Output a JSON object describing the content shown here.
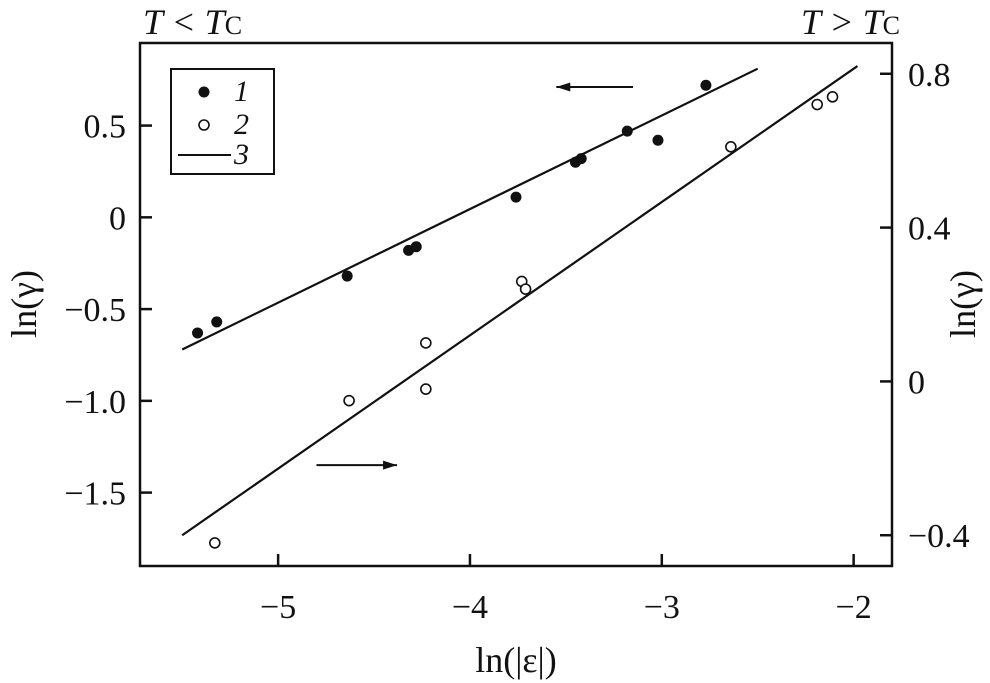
{
  "chart_data": {
    "type": "scatter",
    "xlabel": "ln(|ε|)",
    "ylabel_left": "ln(γ)",
    "ylabel_right": "ln(γ)",
    "corner_left": {
      "main": "T < T",
      "sub": "C"
    },
    "corner_right": {
      "main": "T > T",
      "sub": "C"
    },
    "xlim": [
      -5.72,
      -1.8
    ],
    "ylim_left": [
      -1.9,
      0.95
    ],
    "ylim_right": [
      -0.48,
      0.88
    ],
    "x_ticks": [
      {
        "value": -5,
        "label": "−5"
      },
      {
        "value": -4,
        "label": "−4"
      },
      {
        "value": -3,
        "label": "−3"
      },
      {
        "value": -2,
        "label": "−2"
      }
    ],
    "y_ticks_left": [
      {
        "value": 0.5,
        "label": "0.5"
      },
      {
        "value": 0,
        "label": "0"
      },
      {
        "value": -0.5,
        "label": "−0.5"
      },
      {
        "value": -1.0,
        "label": "−1.0"
      },
      {
        "value": -1.5,
        "label": "−1.5"
      }
    ],
    "y_ticks_right": [
      {
        "value": 0.8,
        "label": "0.8"
      },
      {
        "value": 0.4,
        "label": "0.4"
      },
      {
        "value": 0,
        "label": "0"
      },
      {
        "value": -0.4,
        "label": "−0.4"
      }
    ],
    "legend": {
      "position": "top-left",
      "entries": [
        "1",
        "2",
        "3"
      ]
    },
    "series": [
      {
        "name": "1",
        "marker": "filled-circle",
        "axis": "left",
        "points": [
          [
            -5.42,
            -0.63
          ],
          [
            -5.32,
            -0.57
          ],
          [
            -4.64,
            -0.32
          ],
          [
            -4.32,
            -0.18
          ],
          [
            -4.28,
            -0.16
          ],
          [
            -3.76,
            0.11
          ],
          [
            -3.45,
            0.3
          ],
          [
            -3.42,
            0.32
          ],
          [
            -3.18,
            0.47
          ],
          [
            -3.02,
            0.42
          ],
          [
            -2.77,
            0.72
          ]
        ]
      },
      {
        "name": "2",
        "marker": "open-circle",
        "axis": "right",
        "points": [
          [
            -5.33,
            -0.42
          ],
          [
            -4.63,
            -0.05
          ],
          [
            -4.23,
            0.1
          ],
          [
            -4.23,
            -0.02
          ],
          [
            -3.73,
            0.26
          ],
          [
            -3.71,
            0.24
          ],
          [
            -2.64,
            0.61
          ],
          [
            -2.19,
            0.72
          ],
          [
            -2.11,
            0.74
          ]
        ]
      }
    ],
    "fit_lines": [
      {
        "name": "3",
        "axis": "left",
        "from": [
          -5.5,
          -0.72
        ],
        "to": [
          -2.5,
          0.81
        ]
      },
      {
        "name": "3",
        "axis": "right",
        "from": [
          -5.5,
          -0.4
        ],
        "to": [
          -1.98,
          0.82
        ]
      }
    ],
    "arrows": [
      {
        "direction": "left",
        "from": [
          -3.15,
          0.71
        ],
        "to": [
          -3.55,
          0.71
        ],
        "axis": "left"
      },
      {
        "direction": "right",
        "from": [
          -4.8,
          -1.35
        ],
        "to": [
          -4.38,
          -1.35
        ],
        "axis": "left"
      }
    ]
  }
}
